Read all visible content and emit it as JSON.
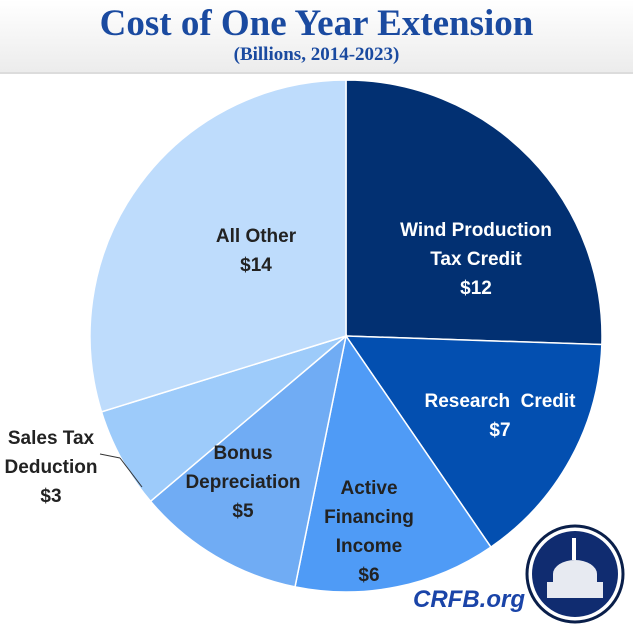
{
  "chart_data": {
    "type": "pie",
    "title": "Cost of One Year Extension",
    "subtitle": "(Billions, 2014-2023)",
    "unit": "billions USD",
    "slices": [
      {
        "label_lines": [
          "Wind Production",
          "Tax Credit"
        ],
        "value": 12,
        "value_label": "$12",
        "color": "#023072"
      },
      {
        "label_lines": [
          "Research  Credit"
        ],
        "value": 7,
        "value_label": "$7",
        "color": "#034fb0"
      },
      {
        "label_lines": [
          "Active",
          "Financing",
          "Income"
        ],
        "value": 6,
        "value_label": "$6",
        "color": "#4f9bf6"
      },
      {
        "label_lines": [
          "Bonus",
          "Depreciation"
        ],
        "value": 5,
        "value_label": "$5",
        "color": "#70acf4"
      },
      {
        "label_lines": [
          "Sales Tax",
          "Deduction"
        ],
        "value": 3,
        "value_label": "$3",
        "color": "#9dcbfa"
      },
      {
        "label_lines": [
          "All Other"
        ],
        "value": 14,
        "value_label": "$14",
        "color": "#bedcfc"
      }
    ]
  },
  "footer": {
    "site": "CRFB.org"
  }
}
